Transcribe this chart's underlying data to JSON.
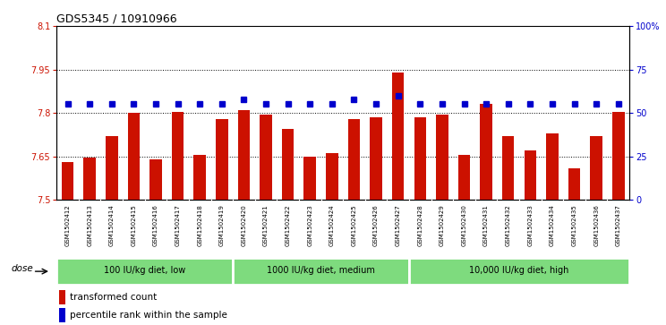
{
  "title": "GDS5345 / 10910966",
  "samples": [
    "GSM1502412",
    "GSM1502413",
    "GSM1502414",
    "GSM1502415",
    "GSM1502416",
    "GSM1502417",
    "GSM1502418",
    "GSM1502419",
    "GSM1502420",
    "GSM1502421",
    "GSM1502422",
    "GSM1502423",
    "GSM1502424",
    "GSM1502425",
    "GSM1502426",
    "GSM1502427",
    "GSM1502428",
    "GSM1502429",
    "GSM1502430",
    "GSM1502431",
    "GSM1502432",
    "GSM1502433",
    "GSM1502434",
    "GSM1502435",
    "GSM1502436",
    "GSM1502437"
  ],
  "bar_values": [
    7.63,
    7.645,
    7.72,
    7.8,
    7.64,
    7.805,
    7.655,
    7.78,
    7.81,
    7.795,
    7.745,
    7.65,
    7.66,
    7.78,
    7.785,
    7.94,
    7.785,
    7.795,
    7.655,
    7.83,
    7.72,
    7.67,
    7.73,
    7.61,
    7.72,
    7.805
  ],
  "percentile_values": [
    55,
    55,
    55,
    55,
    55,
    55,
    55,
    55,
    58,
    55,
    55,
    55,
    55,
    58,
    55,
    60,
    55,
    55,
    55,
    55,
    55,
    55,
    55,
    55,
    55,
    55
  ],
  "groups": [
    {
      "label": "100 IU/kg diet, low",
      "start": 0,
      "end": 7
    },
    {
      "label": "1000 IU/kg diet, medium",
      "start": 8,
      "end": 15
    },
    {
      "label": "10,000 IU/kg diet, high",
      "start": 16,
      "end": 25
    }
  ],
  "ylim_left": [
    7.5,
    8.1
  ],
  "ylim_right": [
    0,
    100
  ],
  "yticks_left": [
    7.5,
    7.65,
    7.8,
    7.95,
    8.1
  ],
  "yticks_right": [
    0,
    25,
    50,
    75,
    100
  ],
  "ytick_labels_left": [
    "7.5",
    "7.65",
    "7.8",
    "7.95",
    "8.1"
  ],
  "ytick_labels_right": [
    "0",
    "25",
    "50",
    "75",
    "100%"
  ],
  "hlines": [
    7.65,
    7.8,
    7.95
  ],
  "bar_color": "#CC1100",
  "dot_color": "#0000CC",
  "group_band_color": "#7EDB7E",
  "dose_label": "dose",
  "legend_bar": "transformed count",
  "legend_dot": "percentile rank within the sample",
  "plot_bg_color": "#FFFFFF",
  "xtick_bg_color": "#C8C8C8",
  "title_fontsize": 9,
  "tick_fontsize": 7,
  "label_fontsize": 7.5
}
